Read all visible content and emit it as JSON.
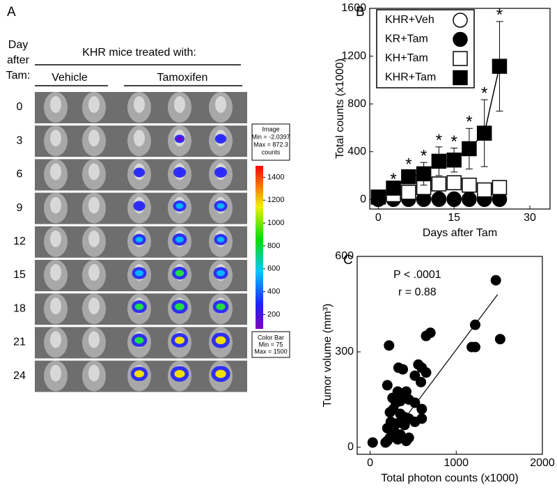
{
  "panel_a": {
    "label": "A",
    "day_header": [
      "Day",
      "after",
      "Tam:"
    ],
    "group_header": "KHR mice treated with:",
    "groups": [
      "Vehicle",
      "Tamoxifen"
    ],
    "days": [
      0,
      3,
      6,
      9,
      12,
      15,
      18,
      21,
      24
    ],
    "image_scale": [
      "Image",
      "Min = -2.0397",
      "Max = 872.3",
      "counts"
    ],
    "color_bar": {
      "lim": [
        75,
        1500
      ],
      "ticks": [
        200,
        400,
        600,
        800,
        1000,
        1200,
        1400
      ],
      "box": [
        "Color Bar",
        "Min = 75",
        "Max = 1500"
      ]
    }
  },
  "chart_data": [
    {
      "type": "line",
      "panel_label": "B",
      "x_label": "Days after Tam",
      "y_label": "Total counts  (x1000)",
      "x": [
        0,
        3,
        6,
        9,
        12,
        15,
        18,
        21,
        24
      ],
      "xlim": [
        -1.7,
        34
      ],
      "xticks": [
        0,
        15,
        30
      ],
      "ylim": [
        -80,
        1600
      ],
      "yticks": [
        0,
        400,
        800,
        1200,
        1600
      ],
      "legend": "upper left",
      "series": [
        {
          "name": "KHR+Veh",
          "color": "#000000",
          "marker": "circle",
          "filled": false,
          "connected": false,
          "values": [
            5,
            5,
            5,
            5,
            5,
            5,
            5,
            5,
            5
          ]
        },
        {
          "name": "KR+Tam",
          "color": "#000000",
          "marker": "circle",
          "filled": true,
          "connected": false,
          "values": [
            0,
            0,
            0,
            0,
            0,
            0,
            0,
            0,
            0
          ]
        },
        {
          "name": "KH+Tam",
          "color": "#000000",
          "marker": "square",
          "filled": false,
          "connected": false,
          "values": [
            20,
            40,
            60,
            100,
            130,
            140,
            120,
            80,
            100
          ]
        },
        {
          "name": "KHR+Tam",
          "color": "#000000",
          "marker": "square",
          "filled": true,
          "connected": true,
          "values": [
            20,
            95,
            190,
            215,
            320,
            330,
            425,
            555,
            1115
          ],
          "errors": [
            10,
            20,
            50,
            95,
            120,
            100,
            170,
            280,
            375
          ]
        }
      ],
      "significance_labels": [
        null,
        "*",
        "*",
        "*",
        "*",
        "*",
        "*",
        "*",
        "*"
      ]
    },
    {
      "type": "scatter",
      "panel_label": "C",
      "x_label": "Total photon counts (x1000)",
      "y_label": "Tumor volume (mm³)",
      "annotations": [
        "P < .0001",
        "r = 0.88"
      ],
      "color": "#000000",
      "x": [
        1460,
        1510,
        1220,
        1180,
        1220,
        700,
        650,
        220,
        560,
        600,
        330,
        380,
        650,
        520,
        200,
        590,
        320,
        360,
        420,
        260,
        300,
        350,
        450,
        520,
        600,
        270,
        230,
        350,
        400,
        450,
        600,
        240,
        310,
        400,
        200,
        280,
        350,
        450,
        230,
        320,
        200,
        420,
        180,
        30,
        520
      ],
      "y": [
        525,
        340,
        385,
        315,
        315,
        360,
        350,
        320,
        260,
        250,
        250,
        245,
        235,
        225,
        195,
        205,
        175,
        170,
        175,
        155,
        140,
        145,
        150,
        140,
        120,
        120,
        110,
        105,
        95,
        90,
        90,
        80,
        75,
        70,
        60,
        50,
        40,
        30,
        30,
        25,
        20,
        20,
        15,
        15,
        80
      ],
      "xlim": [
        -150,
        2000
      ],
      "xticks": [
        0,
        1000,
        2000
      ],
      "ylim": [
        -22,
        600
      ],
      "yticks": [
        0,
        300,
        600
      ],
      "fit_line": {
        "x": [
          150,
          1480
        ],
        "y": [
          0,
          480
        ]
      }
    }
  ]
}
